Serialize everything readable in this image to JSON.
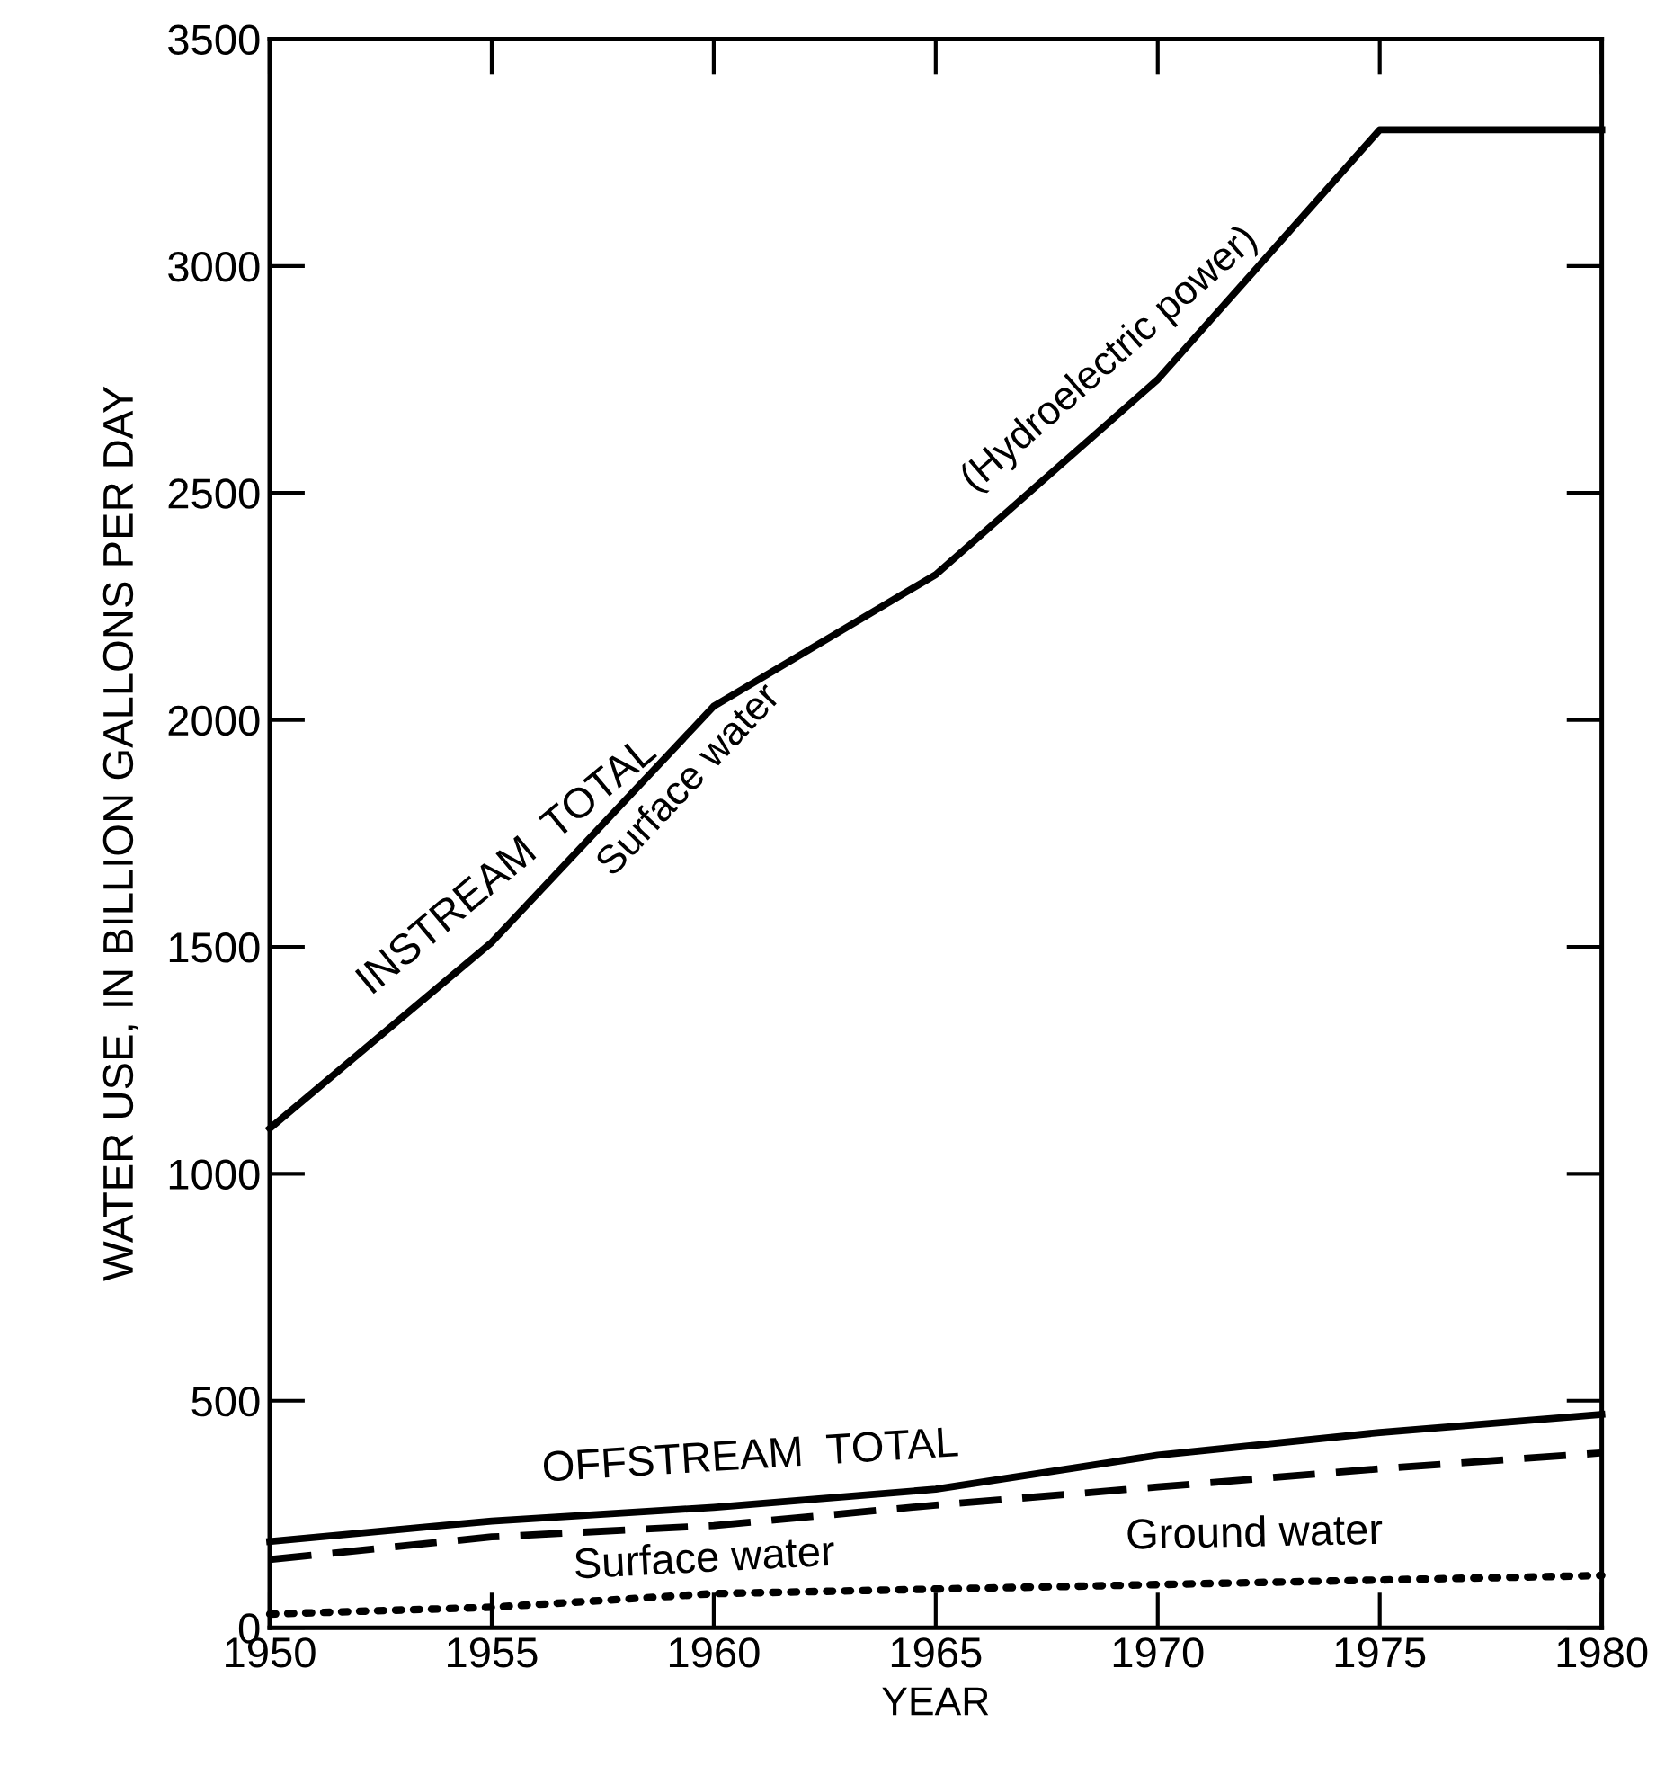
{
  "chart_data": {
    "type": "line",
    "xlabel": "YEAR",
    "ylabel": "WATER USE, IN BILLION GALLONS PER DAY",
    "x": [
      1950,
      1955,
      1960,
      1965,
      1970,
      1975,
      1980
    ],
    "series": [
      {
        "name": "INSTREAM  TOTAL",
        "color": "#000000",
        "line_style": "solid",
        "values": [
          1100,
          1510,
          2030,
          2320,
          2750,
          3300,
          3300
        ]
      },
      {
        "name": "OFFSTREAM  TOTAL",
        "color": "#000000",
        "line_style": "solid",
        "values": [
          190,
          235,
          265,
          305,
          380,
          430,
          470
        ]
      },
      {
        "name": "Surface water",
        "color": "#000000",
        "line_style": "dashed",
        "values": [
          150,
          200,
          225,
          270,
          310,
          350,
          385
        ]
      },
      {
        "name": "Ground water",
        "color": "#000000",
        "line_style": "dotted",
        "values": [
          30,
          45,
          75,
          85,
          95,
          105,
          115
        ]
      }
    ],
    "annotations": [
      "(Hydroelectric power)",
      "Surface water"
    ],
    "xlim": [
      1950,
      1980
    ],
    "xticks": [
      1950,
      1955,
      1960,
      1965,
      1970,
      1975,
      1980
    ],
    "ylim": [
      0,
      3500
    ],
    "yticks": [
      0,
      500,
      1000,
      1500,
      2000,
      2500,
      3000,
      3500
    ],
    "grid": false,
    "marker": "none"
  }
}
